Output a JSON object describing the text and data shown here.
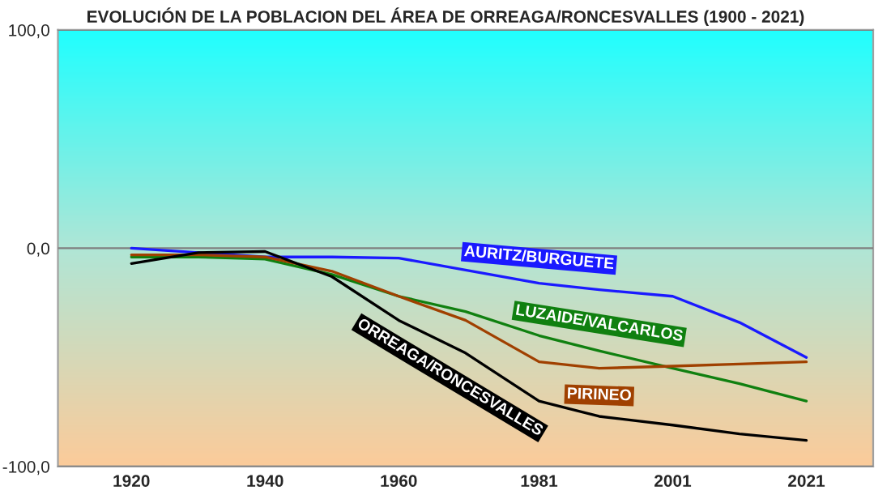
{
  "chart_data": {
    "type": "line",
    "title": "EVOLUCIÓN DE LA POBLACION DEL ÁREA DE ORREAGA/RONCESVALLES (1900 - 2021)",
    "x": [
      1920,
      1930,
      1940,
      1950,
      1960,
      1970,
      1981,
      1990,
      2001,
      2011,
      2021
    ],
    "series": [
      {
        "name": "AURITZ/BURGUETE",
        "color": "#1a1aff",
        "values": [
          0,
          -2,
          -4,
          -4,
          -4.5,
          -10,
          -16,
          -19,
          -22,
          -34,
          -50
        ]
      },
      {
        "name": "LUZAIDE/VALCARLOS",
        "color": "#108010",
        "values": [
          -4,
          -4,
          -5,
          -12,
          -22,
          -29,
          -40,
          -47,
          -55,
          -62,
          -70
        ]
      },
      {
        "name": "PIRINEO",
        "color": "#a04000",
        "values": [
          -3,
          -3,
          -4,
          -10.5,
          -22,
          -33,
          -52,
          -55,
          -54,
          -53,
          -52
        ]
      },
      {
        "name": "ORREAGA/RONCESVALLES",
        "color": "#000000",
        "values": [
          -7,
          -2,
          -1.5,
          -13,
          -33,
          -48,
          -70,
          -77,
          -81,
          -85,
          -88
        ]
      }
    ],
    "xlim": [
      1909,
      2031
    ],
    "xticks": [
      1920,
      1940,
      1960,
      1981,
      2001,
      2021
    ],
    "ylim": [
      -100,
      100
    ],
    "yticks": [
      {
        "value": -100,
        "label": "-100,0"
      },
      {
        "value": 0,
        "label": "0,0"
      },
      {
        "value": 100,
        "label": "100,0"
      }
    ],
    "grid": "y",
    "legend": false,
    "marker": "none",
    "line_style": "solid"
  }
}
